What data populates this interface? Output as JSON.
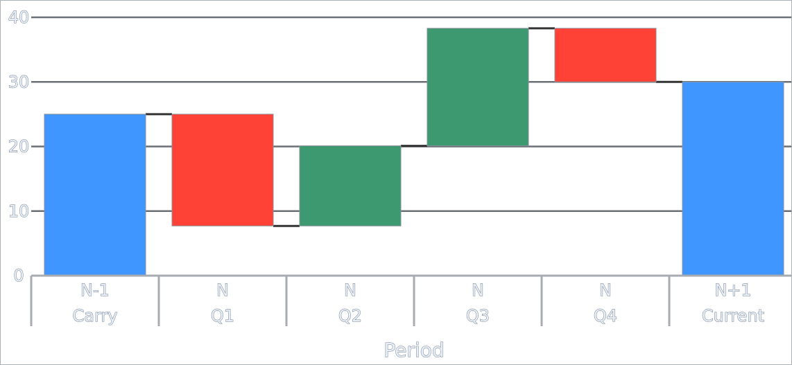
{
  "chart_data": {
    "type": "waterfall",
    "title": "",
    "xlabel": "Period",
    "ylabel": "",
    "ylim": [
      0,
      40
    ],
    "yticks": [
      0,
      10,
      20,
      30,
      40
    ],
    "grid": true,
    "categories": [
      {
        "level1": "N-1",
        "level2": "Carry"
      },
      {
        "level1": "N",
        "level2": "Q1"
      },
      {
        "level1": "N",
        "level2": "Q2"
      },
      {
        "level1": "N",
        "level2": "Q3"
      },
      {
        "level1": "N",
        "level2": "Q4"
      },
      {
        "level1": "N+1",
        "level2": "Current"
      }
    ],
    "bars": [
      {
        "kind": "total",
        "start": 0,
        "end": 25
      },
      {
        "kind": "decrease",
        "start": 25,
        "end": 7.7
      },
      {
        "kind": "increase",
        "start": 7.7,
        "end": 20.1
      },
      {
        "kind": "increase",
        "start": 20.1,
        "end": 38.3
      },
      {
        "kind": "decrease",
        "start": 38.3,
        "end": 30
      },
      {
        "kind": "total",
        "start": 0,
        "end": 30
      }
    ],
    "colors": {
      "total": "#4096ff",
      "increase": "#3d9970",
      "decrease": "#ff4136",
      "grid": "#6b6f76",
      "connector": "#333333",
      "axis": "#a7abb2"
    }
  }
}
